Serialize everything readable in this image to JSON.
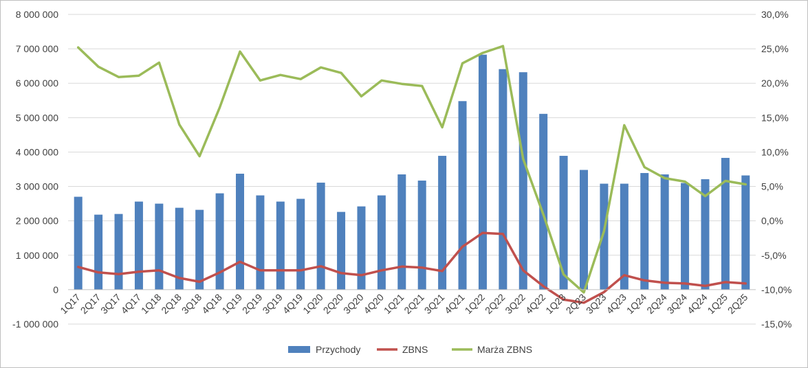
{
  "chart_data": {
    "type": "bar",
    "title": "",
    "categories": [
      "1Q17",
      "2Q17",
      "3Q17",
      "4Q17",
      "1Q18",
      "2Q18",
      "3Q18",
      "4Q18",
      "1Q19",
      "2Q19",
      "3Q19",
      "4Q19",
      "1Q20",
      "2Q20",
      "3Q20",
      "4Q20",
      "1Q21",
      "2Q21",
      "3Q21",
      "4Q21",
      "1Q22",
      "2Q22",
      "3Q22",
      "4Q22",
      "1Q23",
      "2Q23",
      "3Q23",
      "4Q23",
      "1Q24",
      "2Q24",
      "3Q24",
      "4Q24",
      "1Q25",
      "2Q25"
    ],
    "series": [
      {
        "name": "Przychody",
        "type": "bar",
        "axis": "left",
        "color": "#4f81bd",
        "values": [
          2700000,
          2180000,
          2200000,
          2560000,
          2500000,
          2380000,
          2320000,
          2800000,
          3370000,
          2740000,
          2560000,
          2640000,
          3110000,
          2260000,
          2420000,
          2740000,
          3350000,
          3170000,
          3890000,
          5480000,
          6830000,
          6410000,
          6320000,
          5110000,
          3890000,
          3480000,
          3080000,
          3080000,
          3390000,
          3350000,
          3100000,
          3210000,
          3830000,
          3320000
        ]
      },
      {
        "name": "ZBNS",
        "type": "line",
        "axis": "left",
        "color": "#c0504d",
        "values": [
          660000,
          500000,
          450000,
          520000,
          560000,
          340000,
          230000,
          500000,
          810000,
          560000,
          560000,
          560000,
          680000,
          480000,
          420000,
          560000,
          670000,
          640000,
          540000,
          1250000,
          1650000,
          1620000,
          560000,
          100000,
          -290000,
          -380000,
          -70000,
          420000,
          270000,
          200000,
          180000,
          110000,
          220000,
          180000
        ]
      },
      {
        "name": "Marża ZBNS",
        "type": "line",
        "axis": "right",
        "color": "#9bbb59",
        "values": [
          25.2,
          22.4,
          20.9,
          21.1,
          23.0,
          14.0,
          9.4,
          16.5,
          24.6,
          20.4,
          21.2,
          20.6,
          22.3,
          21.5,
          18.1,
          20.4,
          19.9,
          19.6,
          13.6,
          22.9,
          24.4,
          25.4,
          9.0,
          0.9,
          -7.8,
          -10.4,
          -1.5,
          13.9,
          7.8,
          6.2,
          5.7,
          3.6,
          5.8,
          5.3
        ]
      }
    ],
    "y_left": {
      "min": -1000000,
      "max": 8000000,
      "step": 1000000,
      "tick_labels": [
        "-1 000 000",
        "0",
        "1 000 000",
        "2 000 000",
        "3 000 000",
        "4 000 000",
        "5 000 000",
        "6 000 000",
        "7 000 000",
        "8 000 000"
      ]
    },
    "y_right": {
      "min": -15,
      "max": 30,
      "step": 5,
      "tick_labels": [
        "-15,0%",
        "-10,0%",
        "-5,0%",
        "0,0%",
        "5,0%",
        "10,0%",
        "15,0%",
        "20,0%",
        "25,0%",
        "30,0%"
      ]
    },
    "grid": true,
    "legend": {
      "position": "bottom",
      "items": [
        {
          "label": "Przychody",
          "marker": "box",
          "color": "#4f81bd"
        },
        {
          "label": "ZBNS",
          "marker": "line",
          "color": "#c0504d"
        },
        {
          "label": "Marża ZBNS",
          "marker": "line",
          "color": "#9bbb59"
        }
      ]
    },
    "colors": {
      "grid": "#d9d9d9",
      "axis": "#bfbfbf",
      "text": "#404040"
    }
  }
}
